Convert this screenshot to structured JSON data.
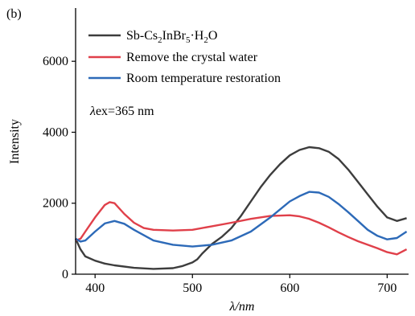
{
  "panel_label": "(b)",
  "annotation": {
    "symbol": "λ",
    "text": "ex=365 nm"
  },
  "colors": {
    "series1": "#3d3d3d",
    "series2": "#e0404a",
    "series3": "#2d6ab8",
    "axis": "#000000"
  },
  "chart_data": {
    "type": "line",
    "xlabel": "λ/nm",
    "ylabel": "Intensity",
    "xlim": [
      380,
      722
    ],
    "ylim": [
      0,
      7500
    ],
    "xticks": [
      400,
      500,
      600,
      700
    ],
    "yticks": [
      0,
      2000,
      4000,
      6000
    ],
    "legend_position": "top-left",
    "series": [
      {
        "name": "Sb-Cs2InBr5·H2O",
        "legend": {
          "pre": "Sb-Cs",
          "s1": "2",
          "mid1": "InBr",
          "s2": "5",
          "mid2": "·H",
          "s3": "2",
          "post": "O"
        },
        "x": [
          380,
          385,
          390,
          400,
          410,
          420,
          440,
          460,
          480,
          490,
          500,
          505,
          510,
          520,
          530,
          540,
          550,
          560,
          570,
          580,
          590,
          600,
          610,
          620,
          630,
          640,
          650,
          660,
          670,
          680,
          690,
          700,
          710,
          720
        ],
        "y": [
          1000,
          700,
          500,
          380,
          300,
          250,
          180,
          150,
          170,
          230,
          330,
          420,
          580,
          850,
          1050,
          1300,
          1650,
          2050,
          2450,
          2800,
          3100,
          3350,
          3500,
          3580,
          3550,
          3450,
          3250,
          2950,
          2600,
          2250,
          1900,
          1600,
          1500,
          1580
        ]
      },
      {
        "name": "Remove the crystal water",
        "x": [
          380,
          385,
          390,
          400,
          410,
          415,
          420,
          430,
          440,
          450,
          460,
          480,
          500,
          520,
          540,
          560,
          580,
          600,
          610,
          620,
          630,
          640,
          650,
          660,
          670,
          680,
          690,
          700,
          710,
          720
        ],
        "y": [
          950,
          1000,
          1200,
          1600,
          1950,
          2030,
          2000,
          1700,
          1450,
          1300,
          1250,
          1230,
          1250,
          1350,
          1450,
          1560,
          1640,
          1660,
          1630,
          1560,
          1450,
          1320,
          1180,
          1050,
          930,
          830,
          730,
          620,
          560,
          700
        ]
      },
      {
        "name": "Room temperature restoration",
        "x": [
          380,
          385,
          390,
          400,
          410,
          420,
          430,
          440,
          460,
          480,
          500,
          520,
          540,
          560,
          580,
          600,
          610,
          620,
          630,
          640,
          650,
          660,
          670,
          680,
          690,
          700,
          710,
          720
        ],
        "y": [
          1000,
          920,
          950,
          1200,
          1430,
          1500,
          1420,
          1250,
          950,
          830,
          780,
          830,
          950,
          1200,
          1600,
          2050,
          2200,
          2320,
          2300,
          2180,
          1980,
          1750,
          1500,
          1250,
          1080,
          980,
          1020,
          1200
        ]
      }
    ]
  }
}
